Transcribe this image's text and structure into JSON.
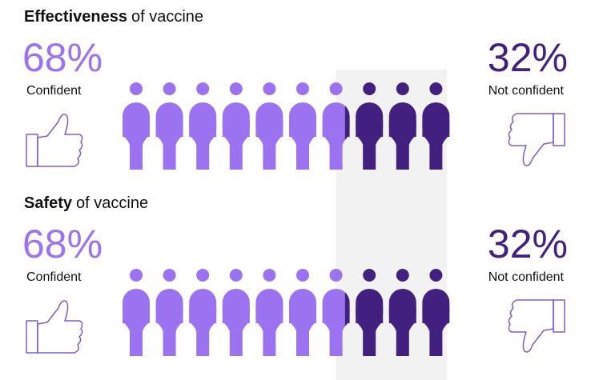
{
  "chart_data": [
    {
      "type": "pictograph",
      "title_emphasis": "Effectiveness",
      "title": "of vaccine",
      "series": [
        {
          "name": "Confident",
          "color": "#9b72f0",
          "values": [
            68
          ],
          "value_labels": [
            "68%"
          ]
        },
        {
          "name": "Not confident",
          "color": "#42207f",
          "values": [
            32
          ],
          "value_labels": [
            "32%"
          ]
        }
      ]
    },
    {
      "type": "pictograph",
      "title_emphasis": "Safety",
      "title": "of vaccine",
      "series": [
        {
          "name": "Confident",
          "color": "#9b72f0",
          "values": [
            68
          ],
          "value_labels": [
            "68%"
          ]
        },
        {
          "name": "Not confident",
          "color": "#42207f",
          "values": [
            32
          ],
          "value_labels": [
            "32%"
          ]
        }
      ]
    }
  ]
}
